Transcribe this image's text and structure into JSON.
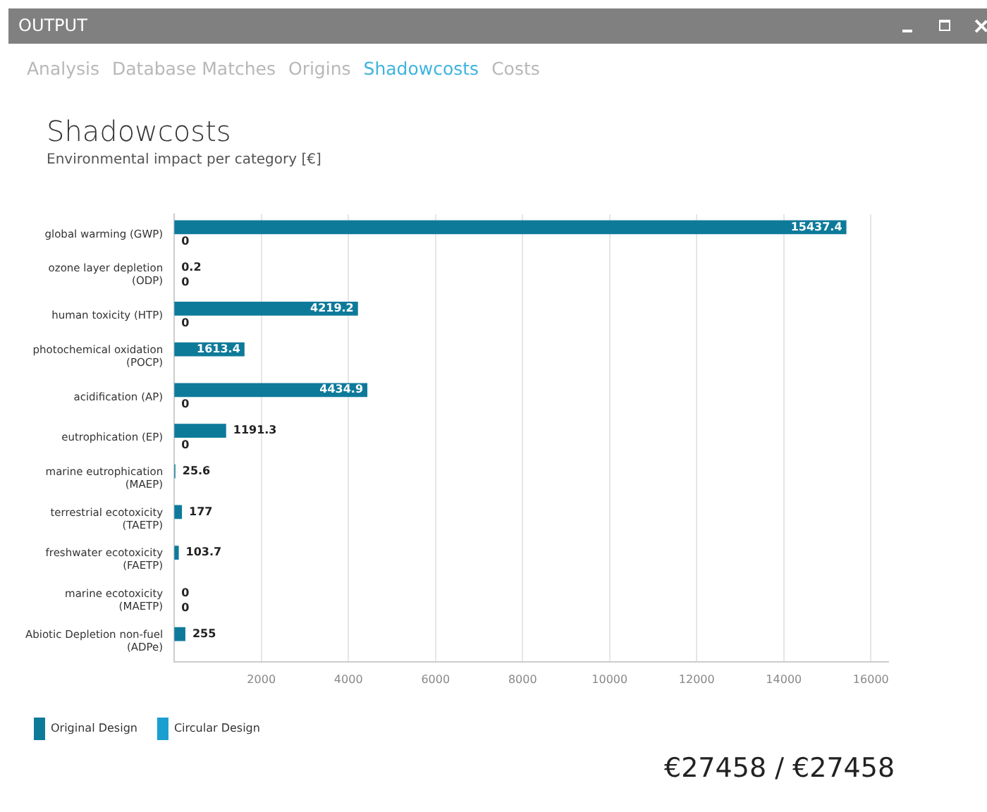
{
  "chart_data": {
    "type": "bar",
    "orientation": "horizontal",
    "title": "Shadowcosts",
    "subtitle": "Environmental impact per category [€]",
    "categories": [
      "global warming (GWP)",
      "ozone layer depletion (ODP)",
      "human toxicity (HTP)",
      "photochemical oxidation (POCP)",
      "acidification (AP)",
      "eutrophication (EP)",
      "marine eutrophication (MAEP)",
      "terrestrial ecotoxicity (TAETP)",
      "freshwater ecotoxicity (FAETP)",
      "marine ecotoxicity (MAETP)",
      "Abiotic Depletion non-fuel (ADPe)"
    ],
    "series": [
      {
        "name": "Original Design",
        "color": "#0e7a9a",
        "values": [
          15437.4,
          0.2,
          4219.2,
          1613.4,
          4434.9,
          1191.3,
          25.6,
          177,
          103.7,
          0,
          255
        ],
        "value_labels": [
          "15437.4",
          "0.2",
          "4219.2",
          "1613.4",
          "4434.9",
          "1191.3",
          "25.6",
          "177",
          "103.7",
          "0",
          "255"
        ]
      },
      {
        "name": "Circular Design",
        "color": "#1a9fd0",
        "values": [
          0,
          0,
          0,
          0,
          0,
          0,
          0,
          0,
          0,
          0,
          0
        ],
        "value_labels": [
          "0",
          "0",
          "0",
          null,
          "0",
          "0",
          null,
          null,
          null,
          "0",
          null
        ]
      }
    ],
    "xlim": [
      0,
      16400
    ],
    "xticks": [
      2000,
      4000,
      6000,
      8000,
      10000,
      12000,
      14000,
      16000
    ],
    "grid": "x",
    "legend": "bottom left",
    "annotations": [
      "OUTPUT",
      "Analysis",
      "Database Matches",
      "Origins",
      "Shadowcosts",
      "Costs",
      "€27458 / €27458"
    ]
  }
}
